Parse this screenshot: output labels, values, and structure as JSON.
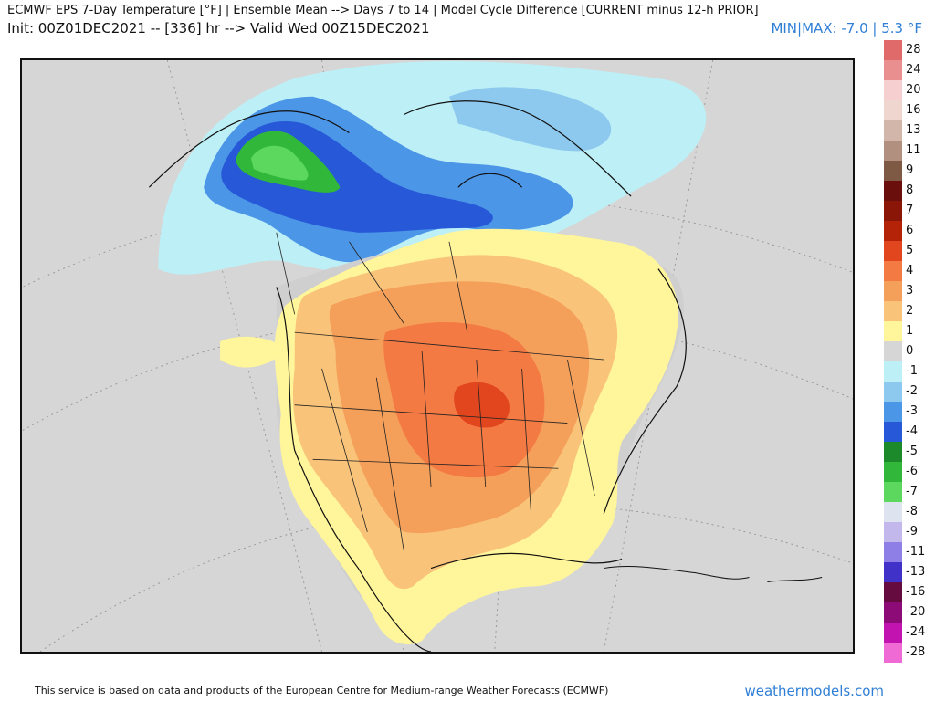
{
  "header": {
    "title": "ECMWF EPS 7-Day Temperature [°F] | Ensemble Mean --> Days 7 to 14 | Model Cycle Difference [CURRENT minus 12-h PRIOR]",
    "subtitle": "Init: 00Z01DEC2021 -- [336] hr --> Valid Wed 00Z15DEC2021",
    "minmax": "MIN|MAX: -7.0 | 5.3 °F"
  },
  "legend": {
    "values": [
      "28",
      "24",
      "20",
      "16",
      "13",
      "11",
      "9",
      "8",
      "7",
      "6",
      "5",
      "4",
      "3",
      "2",
      "1",
      "0",
      "-1",
      "-2",
      "-3",
      "-4",
      "-5",
      "-6",
      "-7",
      "-8",
      "-9",
      "-11",
      "-13",
      "-16",
      "-20",
      "-24",
      "-28"
    ],
    "colors": [
      "#e06a6a",
      "#e98f8f",
      "#f6d0d0",
      "#efd6cf",
      "#d2b6aa",
      "#b1907f",
      "#7e5a45",
      "#6b0f0c",
      "#8a1608",
      "#b42208",
      "#e2461e",
      "#f47a43",
      "#f5a05a",
      "#f9c47a",
      "#fff59a",
      "#d6d6d6",
      "#bdeff6",
      "#8dc8ee",
      "#4c96e8",
      "#2658d8",
      "#1c8a2a",
      "#31b83a",
      "#5cd85e",
      "#dde4ef",
      "#c2b8ec",
      "#8d7fe6",
      "#4032c8",
      "#650b3f",
      "#8d0b76",
      "#c212b0",
      "#f06ad6"
    ]
  },
  "footer": {
    "disclaimer": "This service is based on data and products of the European Centre for Medium-range Weather Forecasts (ECMWF)",
    "brand": "weathermodels.com"
  }
}
